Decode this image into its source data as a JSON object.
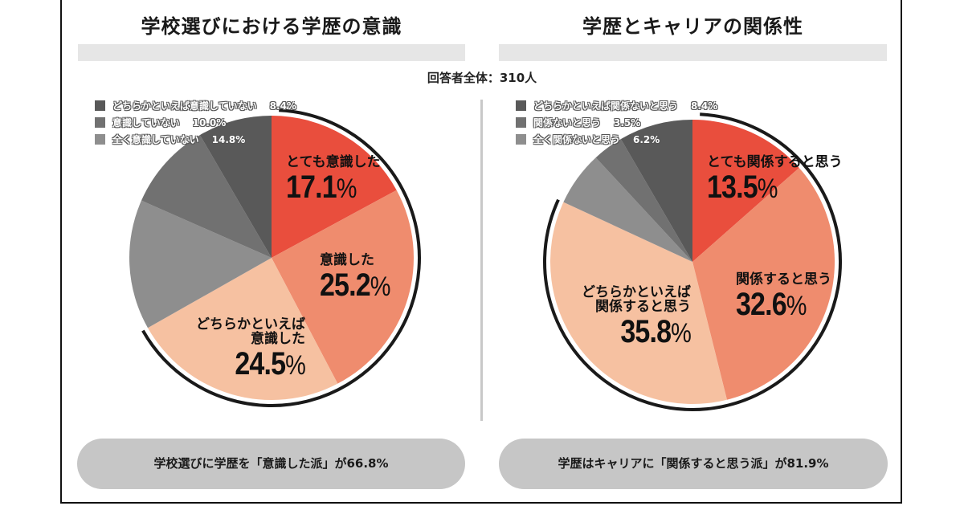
{
  "respondents": "回答者全体：310人",
  "colors": {
    "very": "#e94e3d",
    "yes": "#ef8c6e",
    "somewhat_yes": "#f6c1a1",
    "not_at_all": "#8e8e8e",
    "no": "#717171",
    "somewhat_no": "#595959",
    "arc": "#1a1a1a"
  },
  "chart_data": [
    {
      "type": "pie",
      "title": "学校選びにおける学歴の意識",
      "start": "12 o'clock, clockwise",
      "slices": [
        {
          "label": "とても意識した",
          "value": 17.1,
          "color_key": "very"
        },
        {
          "label": "意識した",
          "value": 25.2,
          "color_key": "yes"
        },
        {
          "label": "どちらかといえば意識した",
          "value": 24.5,
          "color_key": "somewhat_yes"
        },
        {
          "label": "全く意識していない",
          "value": 14.8,
          "color_key": "not_at_all"
        },
        {
          "label": "意識していない",
          "value": 10.0,
          "color_key": "no"
        },
        {
          "label": "どちらかといえば意識していない",
          "value": 8.4,
          "color_key": "somewhat_no"
        }
      ],
      "highlight_group_total": 66.8,
      "legend": [
        {
          "label": "どちらかといえば意識していない",
          "value": "8.4%"
        },
        {
          "label": "意識していない",
          "value": "10.0%"
        },
        {
          "label": "全く意識していない",
          "value": "14.8%"
        }
      ],
      "inner_labels": [
        {
          "lines": [
            "とても意識した"
          ],
          "pct": "17.1"
        },
        {
          "lines": [
            "意識した"
          ],
          "pct": "25.2"
        },
        {
          "lines": [
            "どちらかといえば",
            "意識した"
          ],
          "pct": "24.5"
        }
      ],
      "summary": "学校選びに学歴を「意識した派」が66.8%"
    },
    {
      "type": "pie",
      "title": "学歴とキャリアの関係性",
      "start": "12 o'clock, clockwise",
      "slices": [
        {
          "label": "とても関係すると思う",
          "value": 13.5,
          "color_key": "very"
        },
        {
          "label": "関係すると思う",
          "value": 32.6,
          "color_key": "yes"
        },
        {
          "label": "どちらかといえば関係すると思う",
          "value": 35.8,
          "color_key": "somewhat_yes"
        },
        {
          "label": "全く関係ないと思う",
          "value": 6.2,
          "color_key": "not_at_all"
        },
        {
          "label": "関係ないと思う",
          "value": 3.5,
          "color_key": "no"
        },
        {
          "label": "どちらかといえば関係ないと思う",
          "value": 8.4,
          "color_key": "somewhat_no"
        }
      ],
      "highlight_group_total": 81.9,
      "legend": [
        {
          "label": "どちらかといえば関係ないと思う",
          "value": "8.4%"
        },
        {
          "label": "関係ないと思う",
          "value": "3.5%"
        },
        {
          "label": "全く関係ないと思う",
          "value": "6.2%"
        }
      ],
      "inner_labels": [
        {
          "lines": [
            "とても関係すると思う"
          ],
          "pct": "13.5"
        },
        {
          "lines": [
            "関係すると思う"
          ],
          "pct": "32.6"
        },
        {
          "lines": [
            "どちらかといえば",
            "関係すると思う"
          ],
          "pct": "35.8"
        }
      ],
      "summary": "学歴はキャリアに「関係すると思う派」が81.9%"
    }
  ],
  "percent_sign": "%"
}
